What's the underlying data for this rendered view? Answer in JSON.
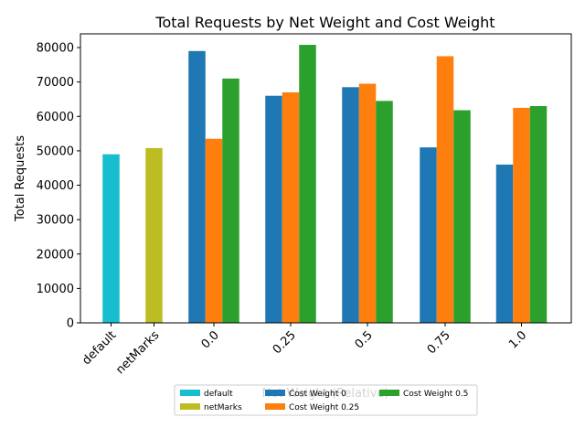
{
  "chart_data": {
    "type": "bar",
    "title": "Total Requests by Net Weight and Cost Weight",
    "ylabel": "Total Requests",
    "xlabel": "Net Weight (Relative)",
    "ylim": [
      0,
      84000
    ],
    "yticks": [
      0,
      10000,
      20000,
      30000,
      40000,
      50000,
      60000,
      70000,
      80000
    ],
    "ytick_labels": [
      "0",
      "10000",
      "20000",
      "30000",
      "40000",
      "50000",
      "60000",
      "70000",
      "80000"
    ],
    "categories": [
      "default",
      "netMarks",
      "0.0",
      "0.25",
      "0.5",
      "0.75",
      "1.0"
    ],
    "baselines": [
      {
        "name": "default",
        "category": "default",
        "value": 49000,
        "color": "#17becf"
      },
      {
        "name": "netMarks",
        "category": "netMarks",
        "value": 50800,
        "color": "#bcbd22"
      }
    ],
    "series": [
      {
        "name": "Cost Weight 0",
        "color": "#1f77b4",
        "values": [
          null,
          null,
          79000,
          66000,
          68500,
          51000,
          46000
        ]
      },
      {
        "name": "Cost Weight 0.25",
        "color": "#ff7f0e",
        "values": [
          null,
          null,
          53500,
          67000,
          69500,
          77500,
          62500
        ]
      },
      {
        "name": "Cost Weight 0.5",
        "color": "#2ca02c",
        "values": [
          null,
          null,
          71000,
          80800,
          64500,
          61800,
          63000
        ]
      }
    ],
    "legend": {
      "placement": "bottom-center",
      "entries": [
        {
          "label": "default",
          "color": "#17becf"
        },
        {
          "label": "netMarks",
          "color": "#bcbd22"
        },
        {
          "label": "Cost Weight 0",
          "color": "#1f77b4"
        },
        {
          "label": "Cost Weight 0.25",
          "color": "#ff7f0e"
        },
        {
          "label": "Cost Weight 0.5",
          "color": "#2ca02c"
        }
      ]
    },
    "grid": false
  }
}
